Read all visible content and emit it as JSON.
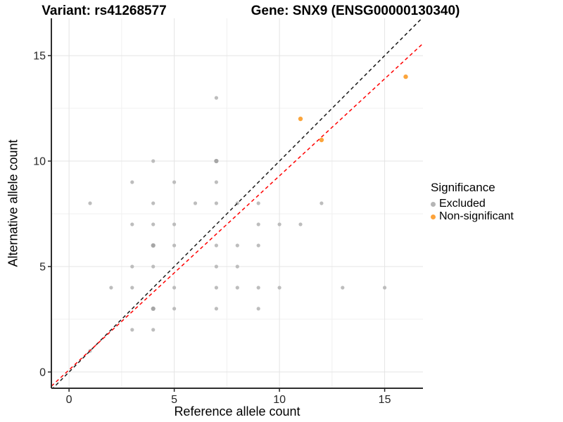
{
  "chart_data": {
    "type": "scatter",
    "titles": [
      "Variant: rs41268577",
      "Gene: SNX9 (ENSG00000130340)"
    ],
    "xlabel": "Reference allele count",
    "ylabel": "Alternative allele count",
    "xlim": [
      -0.84,
      16.82
    ],
    "ylim": [
      -0.77,
      16.77
    ],
    "x_major_ticks": [
      0,
      5,
      10,
      15
    ],
    "y_major_ticks": [
      0,
      5,
      10,
      15
    ],
    "x_minor_ticks": [
      2.5,
      7.5,
      12.5
    ],
    "y_minor_ticks": [
      2.5,
      7.5,
      12.5
    ],
    "grid": true,
    "series": [
      {
        "name": "Excluded",
        "color": "#bdbdbd",
        "points": [
          [
            1,
            1
          ],
          [
            1,
            8
          ],
          [
            2,
            4
          ],
          [
            3,
            2
          ],
          [
            3,
            4
          ],
          [
            3,
            5
          ],
          [
            3,
            7
          ],
          [
            3,
            9
          ],
          [
            4,
            2
          ],
          [
            4,
            3
          ],
          [
            4,
            5
          ],
          [
            4,
            6
          ],
          [
            4,
            7
          ],
          [
            4,
            8
          ],
          [
            4,
            10
          ],
          [
            5,
            3
          ],
          [
            5,
            4
          ],
          [
            5,
            6
          ],
          [
            5,
            7
          ],
          [
            5,
            9
          ],
          [
            6,
            8
          ],
          [
            7,
            3
          ],
          [
            7,
            4
          ],
          [
            7,
            5
          ],
          [
            7,
            6
          ],
          [
            7,
            8
          ],
          [
            7,
            9
          ],
          [
            7,
            10
          ],
          [
            7,
            13
          ],
          [
            8,
            4
          ],
          [
            8,
            5
          ],
          [
            8,
            6
          ],
          [
            8,
            8
          ],
          [
            9,
            3
          ],
          [
            9,
            4
          ],
          [
            9,
            6
          ],
          [
            9,
            7
          ],
          [
            9,
            8
          ],
          [
            10,
            4
          ],
          [
            10,
            7
          ],
          [
            11,
            7
          ],
          [
            12,
            8
          ],
          [
            13,
            4
          ],
          [
            15,
            4
          ]
        ]
      },
      {
        "name": "Non-significant",
        "color": "#fba53c",
        "points": [
          [
            11,
            12
          ],
          [
            12,
            11
          ],
          [
            16,
            14
          ]
        ]
      }
    ],
    "overplotted_points": [
      [
        4,
        3
      ],
      [
        4,
        6
      ],
      [
        7,
        10
      ]
    ],
    "overplotted_color": "#a6a6a6",
    "lines": [
      {
        "name": "identity",
        "slope": 1,
        "intercept": 0,
        "color": "#1a1a1a",
        "dash": true
      },
      {
        "name": "fit",
        "slope": 0.92,
        "intercept": 0.1,
        "color": "#ff0000",
        "dash": true
      }
    ],
    "legend": {
      "title": "Significance",
      "position": "right",
      "items": [
        {
          "label": "Excluded",
          "color": "#b5b5b5"
        },
        {
          "label": "Non-significant",
          "color": "#fda33b"
        }
      ]
    }
  }
}
